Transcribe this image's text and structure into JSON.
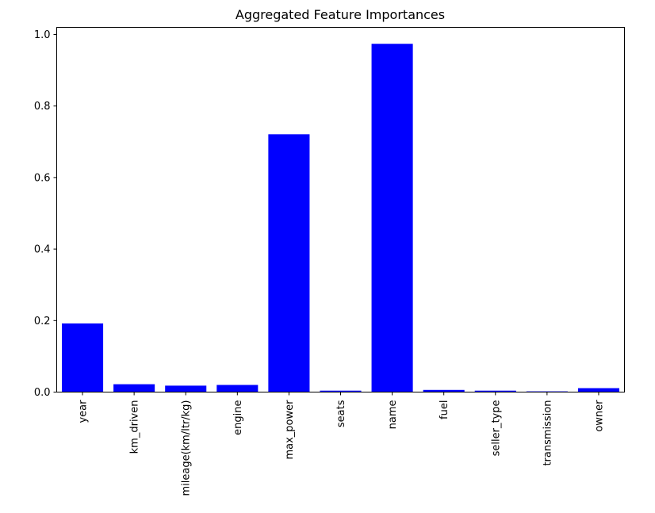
{
  "chart_data": {
    "type": "bar",
    "title": "Aggregated Feature Importances",
    "xlabel": "",
    "ylabel": "",
    "categories": [
      "year",
      "km_driven",
      "mileage(km/ltr/kg)",
      "engine",
      "max_power",
      "seats",
      "name",
      "fuel",
      "seller_type",
      "transmission",
      "owner"
    ],
    "values": [
      0.192,
      0.022,
      0.018,
      0.02,
      0.721,
      0.004,
      0.974,
      0.006,
      0.004,
      0.002,
      0.011
    ],
    "ylim": [
      0,
      1.02
    ],
    "yticks": [
      "0.0",
      "0.2",
      "0.4",
      "0.6",
      "0.8",
      "1.0"
    ],
    "bar_color": "#0000ff",
    "grid": false,
    "legend": "none",
    "xtick_rotation": "vertical"
  }
}
